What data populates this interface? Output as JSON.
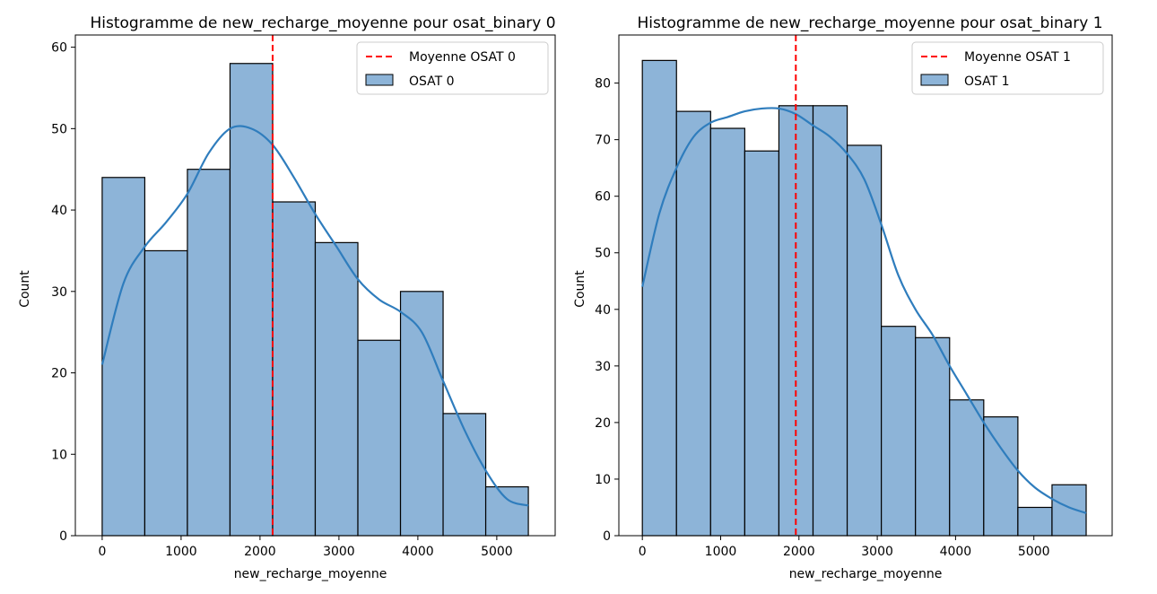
{
  "chart_data": [
    {
      "type": "bar",
      "title": "Histogramme de new_recharge_moyenne pour osat_binary 0",
      "xlabel": "new_recharge_moyenne",
      "ylabel": "Count",
      "xlim": [
        -340,
        5740
      ],
      "ylim": [
        0,
        61.5
      ],
      "xticks": [
        0,
        1000,
        2000,
        3000,
        4000,
        5000
      ],
      "xtick_labels": [
        "0",
        "1000",
        "2000",
        "3000",
        "4000",
        "5000"
      ],
      "yticks": [
        0,
        10,
        20,
        30,
        40,
        50,
        60
      ],
      "ytick_labels": [
        "0",
        "10",
        "20",
        "30",
        "40",
        "50",
        "60"
      ],
      "bins": [
        {
          "x0": 0,
          "x1": 540,
          "count": 44
        },
        {
          "x0": 540,
          "x1": 1080,
          "count": 35
        },
        {
          "x0": 1080,
          "x1": 1620,
          "count": 45
        },
        {
          "x0": 1620,
          "x1": 2160,
          "count": 58
        },
        {
          "x0": 2160,
          "x1": 2700,
          "count": 41
        },
        {
          "x0": 2700,
          "x1": 3240,
          "count": 36
        },
        {
          "x0": 3240,
          "x1": 3780,
          "count": 24
        },
        {
          "x0": 3780,
          "x1": 4320,
          "count": 30
        },
        {
          "x0": 4320,
          "x1": 4860,
          "count": 15
        },
        {
          "x0": 4860,
          "x1": 5400,
          "count": 6
        }
      ],
      "kde": [
        [
          0,
          21
        ],
        [
          270,
          31
        ],
        [
          540,
          35.5
        ],
        [
          810,
          38.5
        ],
        [
          1080,
          42
        ],
        [
          1350,
          47
        ],
        [
          1620,
          50
        ],
        [
          1890,
          50
        ],
        [
          2160,
          48
        ],
        [
          2430,
          44
        ],
        [
          2700,
          39.5
        ],
        [
          2970,
          35.5
        ],
        [
          3240,
          31.5
        ],
        [
          3510,
          29
        ],
        [
          3780,
          27.5
        ],
        [
          4050,
          25
        ],
        [
          4320,
          19
        ],
        [
          4590,
          13
        ],
        [
          4860,
          8
        ],
        [
          5130,
          4.5
        ],
        [
          5400,
          3.7
        ]
      ],
      "mean": 2160,
      "mean_color": "#ff0000",
      "bar_color": "#8db4d8",
      "kde_color": "#2f7dbd",
      "legend": {
        "placement": "top-right",
        "mean_label": "Moyenne OSAT 0",
        "hist_label": "OSAT 0"
      }
    },
    {
      "type": "bar",
      "title": "Histogramme de new_recharge_moyenne pour osat_binary 1",
      "xlabel": "new_recharge_moyenne",
      "ylabel": "Count",
      "xlim": [
        -300,
        6000
      ],
      "ylim": [
        0,
        88.5
      ],
      "xticks": [
        0,
        1000,
        2000,
        3000,
        4000,
        5000
      ],
      "xtick_labels": [
        "0",
        "1000",
        "2000",
        "3000",
        "4000",
        "5000"
      ],
      "yticks": [
        0,
        10,
        20,
        30,
        40,
        50,
        60,
        70,
        80
      ],
      "ytick_labels": [
        "0",
        "10",
        "20",
        "30",
        "40",
        "50",
        "60",
        "70",
        "80"
      ],
      "bins": [
        {
          "x0": 0,
          "x1": 436,
          "count": 84
        },
        {
          "x0": 436,
          "x1": 872,
          "count": 75
        },
        {
          "x0": 872,
          "x1": 1308,
          "count": 72
        },
        {
          "x0": 1308,
          "x1": 1744,
          "count": 68
        },
        {
          "x0": 1744,
          "x1": 2180,
          "count": 76
        },
        {
          "x0": 2180,
          "x1": 2616,
          "count": 76
        },
        {
          "x0": 2616,
          "x1": 3052,
          "count": 69
        },
        {
          "x0": 3052,
          "x1": 3488,
          "count": 37
        },
        {
          "x0": 3488,
          "x1": 3924,
          "count": 35
        },
        {
          "x0": 3924,
          "x1": 4360,
          "count": 24
        },
        {
          "x0": 4360,
          "x1": 4796,
          "count": 21
        },
        {
          "x0": 4796,
          "x1": 5232,
          "count": 5
        },
        {
          "x0": 5232,
          "x1": 5668,
          "count": 9
        }
      ],
      "kde": [
        [
          0,
          44
        ],
        [
          218,
          57
        ],
        [
          436,
          65
        ],
        [
          654,
          70.5
        ],
        [
          872,
          73
        ],
        [
          1090,
          74
        ],
        [
          1308,
          75
        ],
        [
          1526,
          75.5
        ],
        [
          1744,
          75.5
        ],
        [
          1962,
          74.5
        ],
        [
          2180,
          72.5
        ],
        [
          2398,
          70.5
        ],
        [
          2616,
          67.5
        ],
        [
          2834,
          63
        ],
        [
          3052,
          55
        ],
        [
          3270,
          46
        ],
        [
          3488,
          40
        ],
        [
          3706,
          35.5
        ],
        [
          3924,
          30
        ],
        [
          4142,
          25
        ],
        [
          4360,
          20
        ],
        [
          4578,
          15.5
        ],
        [
          4796,
          11.5
        ],
        [
          5014,
          8.5
        ],
        [
          5232,
          6.5
        ],
        [
          5450,
          5
        ],
        [
          5668,
          4
        ]
      ],
      "mean": 1960,
      "mean_color": "#ff0000",
      "bar_color": "#8db4d8",
      "kde_color": "#2f7dbd",
      "legend": {
        "placement": "top-right",
        "mean_label": "Moyenne OSAT 1",
        "hist_label": "OSAT 1"
      }
    }
  ]
}
